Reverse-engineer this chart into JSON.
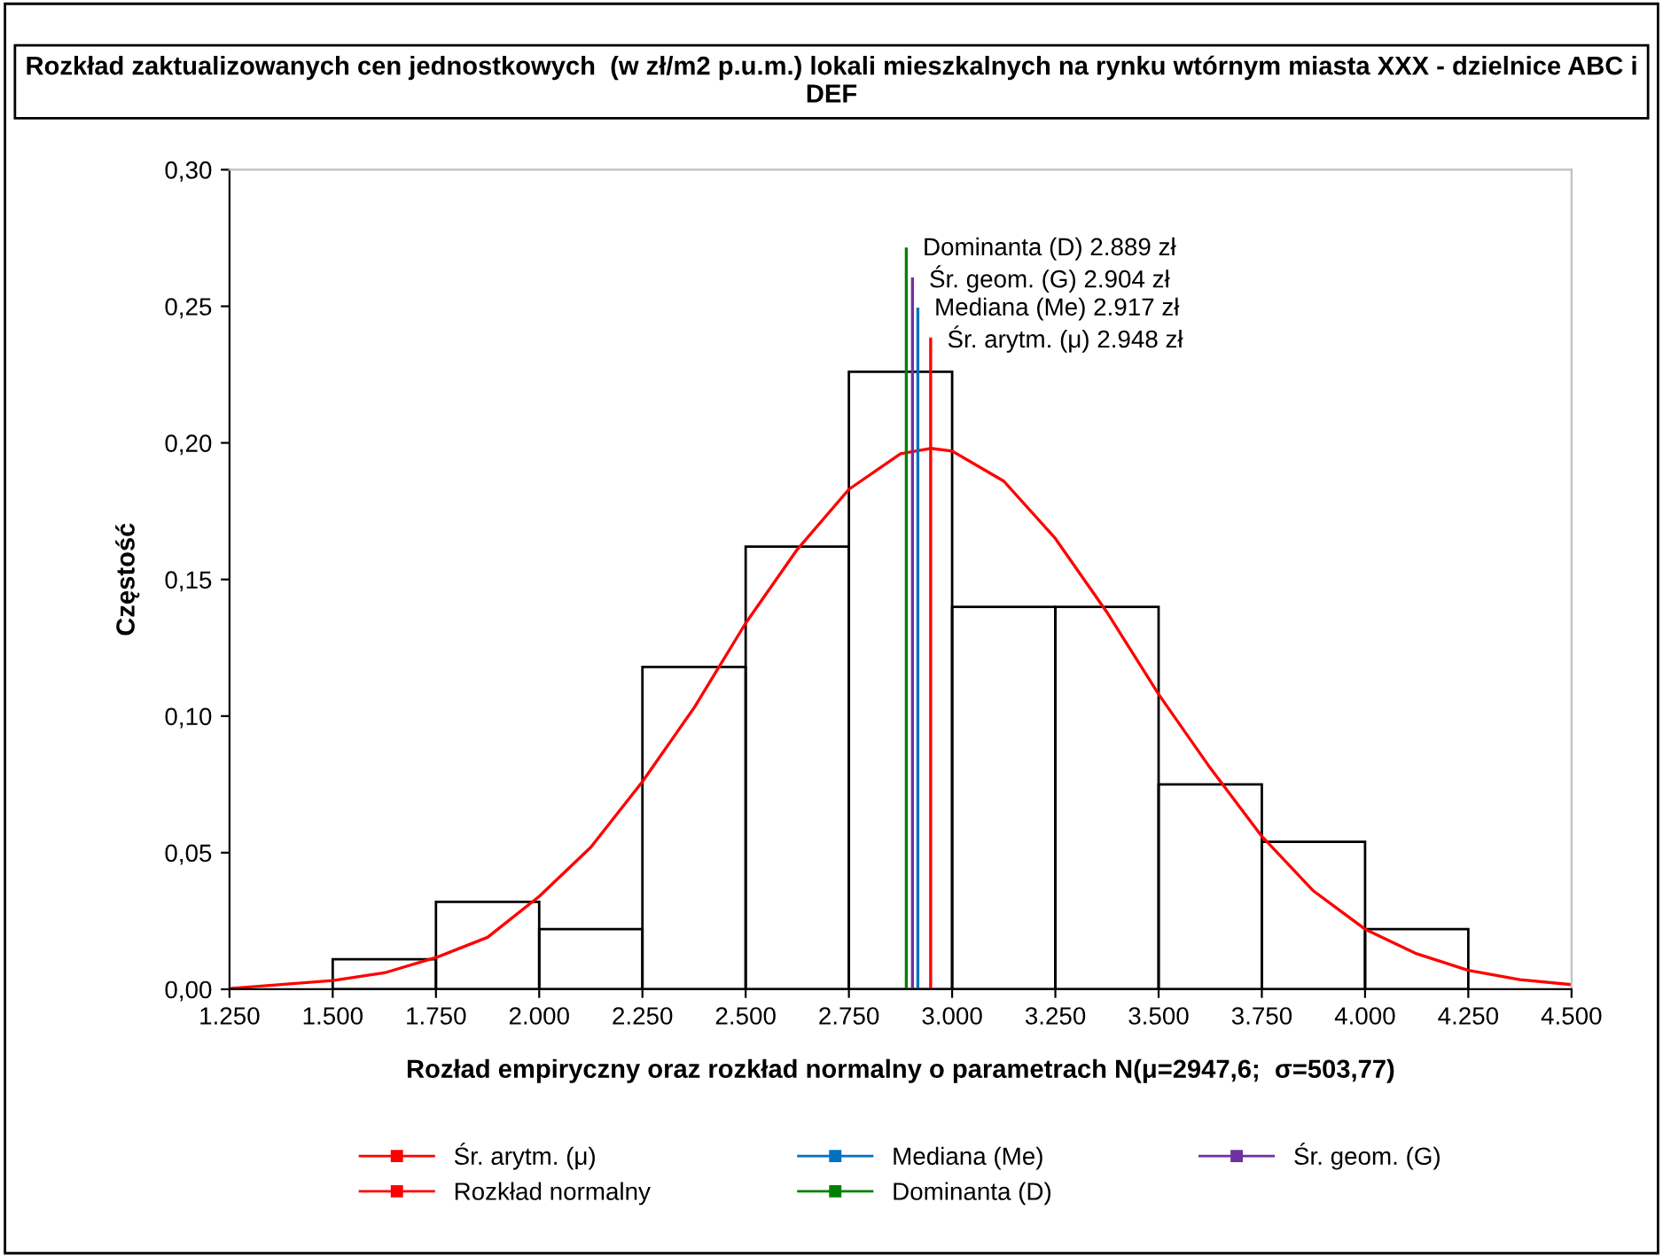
{
  "chart_data": {
    "type": "histogram",
    "title": "Rozkład zaktualizowanych cen jednostkowych  (w zł/m2 p.u.m.) lokali mieszkalnych na rynku wtórnym miasta XXX - dzielnice ABC i DEF",
    "xlabel": "Rozład empiryczny oraz rozkład normalny o parametrach N(μ=2947,6;  σ=503,77)",
    "ylabel": "Częstość",
    "bins": [
      1500,
      1750,
      2000,
      2250,
      2500,
      2750,
      3000,
      3250,
      3500,
      3750,
      4000,
      4250
    ],
    "values": [
      0.011,
      0.032,
      0.022,
      0.118,
      0.162,
      0.226,
      0.14,
      0.14,
      0.075,
      0.054,
      0.022
    ],
    "color": "#000000",
    "series": [
      {
        "name": "Śr. arytm. (μ)",
        "type": "line",
        "color": "#ff0000",
        "x": [
          2948,
          2948
        ],
        "values": [
          0,
          0.238
        ]
      },
      {
        "name": "Rozkład normalny",
        "type": "line",
        "color": "#ff0000",
        "x": [
          1250,
          1500,
          1625,
          1750,
          1875,
          2000,
          2125,
          2250,
          2375,
          2500,
          2625,
          2750,
          2875,
          2948,
          3000,
          3125,
          3250,
          3375,
          3500,
          3625,
          3750,
          3875,
          4000,
          4125,
          4250,
          4375,
          4500
        ],
        "values": [
          0.0003,
          0.0032,
          0.006,
          0.0116,
          0.019,
          0.034,
          0.052,
          0.076,
          0.103,
          0.134,
          0.161,
          0.183,
          0.196,
          0.198,
          0.197,
          0.186,
          0.165,
          0.138,
          0.108,
          0.081,
          0.056,
          0.036,
          0.022,
          0.013,
          0.0069,
          0.0035,
          0.0017
        ]
      },
      {
        "name": "Mediana (Me)",
        "type": "line",
        "color": "#0070c0",
        "x": [
          2917,
          2917
        ],
        "values": [
          0,
          0.249
        ]
      },
      {
        "name": "Dominanta (D)",
        "type": "line",
        "color": "#008000",
        "x": [
          2889,
          2889
        ],
        "values": [
          0,
          0.271
        ]
      },
      {
        "name": "Śr. geom. (G)",
        "type": "line",
        "color": "#7030a0",
        "x": [
          2904,
          2904
        ],
        "values": [
          0,
          0.26
        ]
      }
    ],
    "annotations": [
      {
        "text": "Śr. arytm. (μ) 2.948 zł",
        "x": 2948,
        "y": 0.238
      },
      {
        "text": "Mediana (Me) 2.917 zł",
        "x": 2917,
        "y": 0.249
      },
      {
        "text": "Dominanta (D) 2.889 zł",
        "x": 2889,
        "y": 0.271
      },
      {
        "text": "Śr. geom. (G) 2.904 zł",
        "x": 2904,
        "y": 0.26
      }
    ],
    "xlim": [
      1250,
      4500
    ],
    "xticks": [
      {
        "value": 1250,
        "label": "1.250"
      },
      {
        "value": 1500,
        "label": "1.500"
      },
      {
        "value": 1750,
        "label": "1.750"
      },
      {
        "value": 2000,
        "label": "2.000"
      },
      {
        "value": 2250,
        "label": "2.250"
      },
      {
        "value": 2500,
        "label": "2.500"
      },
      {
        "value": 2750,
        "label": "2.750"
      },
      {
        "value": 3000,
        "label": "3.000"
      },
      {
        "value": 3250,
        "label": "3.250"
      },
      {
        "value": 3500,
        "label": "3.500"
      },
      {
        "value": 3750,
        "label": "3.750"
      },
      {
        "value": 4000,
        "label": "4.000"
      },
      {
        "value": 4250,
        "label": "4.250"
      },
      {
        "value": 4500,
        "label": "4.500"
      }
    ],
    "ylim": [
      0,
      0.3
    ],
    "yticks": [
      {
        "value": 0,
        "label": "0,00"
      },
      {
        "value": 0.05,
        "label": "0,05"
      },
      {
        "value": 0.1,
        "label": "0,10"
      },
      {
        "value": 0.15,
        "label": "0,15"
      },
      {
        "value": 0.2,
        "label": "0,20"
      },
      {
        "value": 0.25,
        "label": "0,25"
      },
      {
        "value": 0.3,
        "label": "0,30"
      }
    ],
    "grid": false,
    "legend": "bottom",
    "marker": "none"
  }
}
